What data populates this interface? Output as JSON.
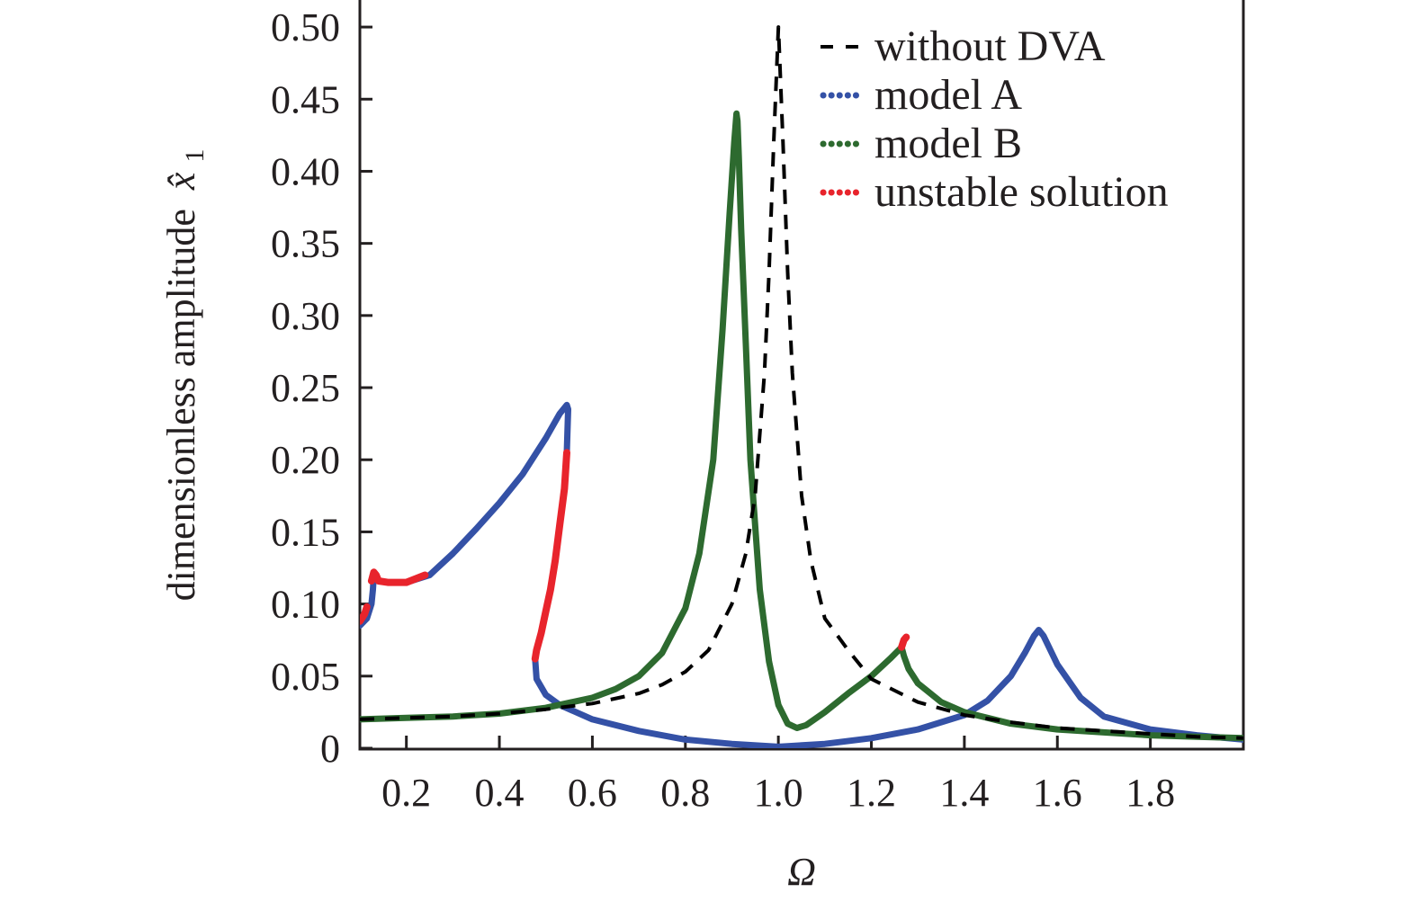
{
  "chart_data": {
    "type": "line",
    "xlabel": "Ω",
    "ylabel": "dimensionless amplitude",
    "ylabel_symbol": "x̂",
    "ylabel_subscript": "1",
    "xlim": [
      0.1,
      2.0
    ],
    "ylim": [
      0,
      0.52
    ],
    "xticks": [
      0.2,
      0.4,
      0.6,
      0.8,
      1.0,
      1.2,
      1.4,
      1.6,
      1.8
    ],
    "xtick_labels": [
      "0.2",
      "0.4",
      "0.6",
      "0.8",
      "1.0",
      "1.2",
      "1.4",
      "1.6",
      "1.8"
    ],
    "yticks": [
      0,
      0.05,
      0.1,
      0.15,
      0.2,
      0.25,
      0.3,
      0.35,
      0.4,
      0.45,
      0.5
    ],
    "ytick_labels": [
      "0",
      "0.05",
      "0.10",
      "0.15",
      "0.20",
      "0.25",
      "0.30",
      "0.35",
      "0.40",
      "0.45",
      "0.50"
    ],
    "grid": false,
    "legend_position": "top-right",
    "legend": [
      {
        "label": "without DVA",
        "color": "#000000",
        "style": "dashed"
      },
      {
        "label": "model A",
        "color": "#3451a6",
        "style": "dotted"
      },
      {
        "label": "model B",
        "color": "#2d6a2f",
        "style": "dotted"
      },
      {
        "label": "unstable solution",
        "color": "#e8242c",
        "style": "dotted"
      }
    ],
    "series": [
      {
        "name": "without DVA",
        "color": "#000000",
        "style": "dashed",
        "x": [
          0.1,
          0.2,
          0.3,
          0.4,
          0.5,
          0.6,
          0.7,
          0.75,
          0.8,
          0.85,
          0.9,
          0.93,
          0.95,
          0.97,
          0.98,
          0.99,
          1.0,
          1.01,
          1.02,
          1.03,
          1.05,
          1.07,
          1.1,
          1.15,
          1.2,
          1.3,
          1.4,
          1.5,
          1.6,
          1.7,
          1.8,
          1.9,
          2.0
        ],
        "y": [
          0.02,
          0.021,
          0.022,
          0.024,
          0.027,
          0.031,
          0.038,
          0.044,
          0.053,
          0.068,
          0.1,
          0.135,
          0.175,
          0.26,
          0.33,
          0.42,
          0.5,
          0.42,
          0.33,
          0.26,
          0.175,
          0.13,
          0.09,
          0.068,
          0.048,
          0.032,
          0.023,
          0.018,
          0.014,
          0.012,
          0.01,
          0.008,
          0.007
        ]
      },
      {
        "name": "model A",
        "color": "#3451a6",
        "style": "dotted",
        "x": [
          0.1,
          0.115,
          0.125,
          0.128,
          0.13,
          0.14,
          0.16,
          0.2,
          0.25,
          0.3,
          0.35,
          0.4,
          0.45,
          0.5,
          0.53,
          0.545,
          0.548,
          0.547,
          0.545,
          0.54,
          0.53,
          0.52,
          0.51,
          0.5,
          0.49,
          0.48,
          0.477,
          0.48,
          0.5,
          0.53,
          0.6,
          0.7,
          0.8,
          0.9,
          1.0,
          1.1,
          1.2,
          1.3,
          1.4,
          1.45,
          1.5,
          1.53,
          1.55,
          1.56,
          1.57,
          1.6,
          1.65,
          1.7,
          1.8,
          1.9,
          2.0
        ],
        "y": [
          0.085,
          0.09,
          0.1,
          0.11,
          0.12,
          0.116,
          0.115,
          0.115,
          0.12,
          0.135,
          0.152,
          0.17,
          0.19,
          0.215,
          0.232,
          0.238,
          0.235,
          0.225,
          0.205,
          0.18,
          0.155,
          0.13,
          0.11,
          0.095,
          0.08,
          0.068,
          0.062,
          0.048,
          0.037,
          0.03,
          0.02,
          0.012,
          0.006,
          0.003,
          0.001,
          0.003,
          0.007,
          0.013,
          0.023,
          0.033,
          0.05,
          0.066,
          0.078,
          0.082,
          0.078,
          0.058,
          0.035,
          0.022,
          0.013,
          0.009,
          0.006
        ]
      },
      {
        "name": "model B",
        "color": "#2d6a2f",
        "style": "dotted",
        "x": [
          0.1,
          0.2,
          0.3,
          0.4,
          0.5,
          0.6,
          0.65,
          0.7,
          0.75,
          0.8,
          0.83,
          0.86,
          0.88,
          0.895,
          0.905,
          0.91,
          0.912,
          0.915,
          0.92,
          0.93,
          0.94,
          0.96,
          0.98,
          1.0,
          1.02,
          1.04,
          1.06,
          1.1,
          1.15,
          1.2,
          1.24,
          1.265,
          1.27,
          1.28,
          1.3,
          1.35,
          1.4,
          1.5,
          1.6,
          1.7,
          1.8,
          1.9,
          2.0
        ],
        "y": [
          0.02,
          0.021,
          0.022,
          0.024,
          0.028,
          0.035,
          0.041,
          0.05,
          0.066,
          0.097,
          0.135,
          0.2,
          0.29,
          0.37,
          0.42,
          0.44,
          0.435,
          0.41,
          0.36,
          0.28,
          0.2,
          0.11,
          0.06,
          0.03,
          0.017,
          0.014,
          0.016,
          0.025,
          0.038,
          0.05,
          0.062,
          0.07,
          0.064,
          0.055,
          0.045,
          0.032,
          0.025,
          0.017,
          0.013,
          0.011,
          0.009,
          0.008,
          0.007
        ]
      },
      {
        "name": "unstable solution",
        "color": "#e8242c",
        "style": "dotted",
        "segments": [
          {
            "x": [
              0.1,
              0.11,
              0.115
            ],
            "y": [
              0.088,
              0.093,
              0.098
            ]
          },
          {
            "x": [
              0.125,
              0.13,
              0.135,
              0.14,
              0.16,
              0.2,
              0.24
            ],
            "y": [
              0.116,
              0.122,
              0.12,
              0.116,
              0.115,
              0.115,
              0.12
            ]
          },
          {
            "x": [
              0.545,
              0.54,
              0.53,
              0.52,
              0.51,
              0.5,
              0.49,
              0.48,
              0.477
            ],
            "y": [
              0.205,
              0.18,
              0.155,
              0.13,
              0.11,
              0.095,
              0.08,
              0.068,
              0.062
            ]
          },
          {
            "x": [
              1.265,
              1.27,
              1.275
            ],
            "y": [
              0.07,
              0.075,
              0.077
            ]
          }
        ]
      }
    ]
  }
}
